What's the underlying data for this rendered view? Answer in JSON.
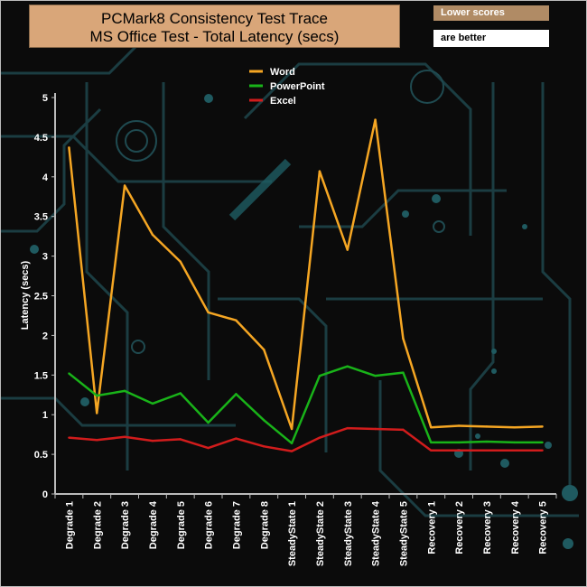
{
  "header": {
    "title_line1": "PCMark8 Consistency Test Trace",
    "title_line2": "MS Office Test -  Total Latency (secs)",
    "note_line1": "Lower scores",
    "note_line2": "are better"
  },
  "chart_data": {
    "type": "line",
    "title": "PCMark8 Consistency Test Trace MS Office Test -  Total Latency (secs)",
    "ylabel": "Latency (secs)",
    "xlabel": "",
    "ylim": [
      0,
      5
    ],
    "yticks": [
      "0",
      "0.5",
      "1",
      "1.5",
      "2",
      "2.5",
      "3",
      "3.5",
      "4",
      "4.5",
      "5"
    ],
    "grid": false,
    "legend_position": "top-center",
    "categories": [
      "Degrade 1",
      "Degrade 2",
      "Degrade 3",
      "Degrade 4",
      "Degrade 5",
      "Degrade 6",
      "Degrade 7",
      "Degrade 8",
      "SteadyState 1",
      "SteadyState 2",
      "SteadyState 3",
      "SteadyState 4",
      "SteadyState 5",
      "Recovery 1",
      "Recovery 2",
      "Recovery 3",
      "Recovery 4",
      "Recovery 5"
    ],
    "series": [
      {
        "name": "Word",
        "color": "#f5a623",
        "values": [
          4.37,
          1.02,
          3.89,
          3.27,
          2.93,
          2.29,
          2.19,
          1.82,
          0.82,
          4.07,
          3.08,
          4.72,
          1.96,
          0.84,
          0.86,
          0.85,
          0.84,
          0.85
        ]
      },
      {
        "name": "PowerPoint",
        "color": "#19b319",
        "values": [
          1.52,
          1.24,
          1.3,
          1.14,
          1.27,
          0.9,
          1.26,
          0.93,
          0.64,
          1.49,
          1.61,
          1.49,
          1.53,
          0.65,
          0.65,
          0.66,
          0.65,
          0.65
        ]
      },
      {
        "name": "Excel",
        "color": "#d11c1c",
        "values": [
          0.71,
          0.68,
          0.72,
          0.67,
          0.69,
          0.58,
          0.7,
          0.6,
          0.54,
          0.71,
          0.83,
          0.82,
          0.81,
          0.55,
          0.55,
          0.55,
          0.55,
          0.55
        ]
      }
    ]
  }
}
